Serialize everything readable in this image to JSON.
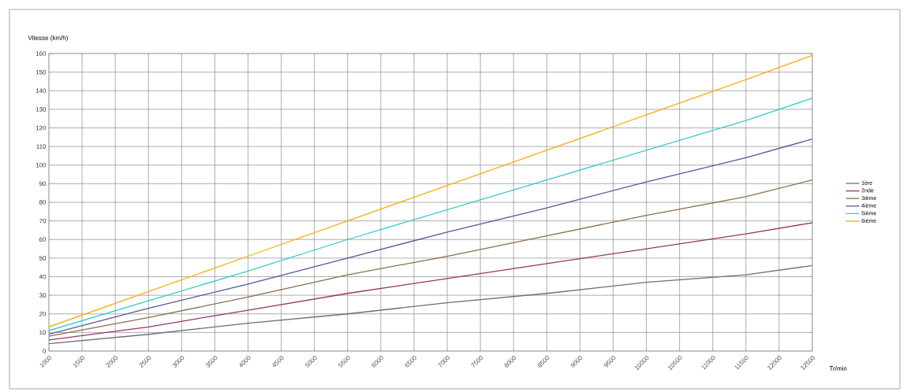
{
  "chart_data": {
    "type": "line",
    "xlabel": "Tr/min",
    "ylabel": "Vitesse (km/h)",
    "x": [
      1000,
      2500,
      4000,
      5500,
      7000,
      8500,
      10000,
      11500,
      12500
    ],
    "series": [
      {
        "name": "1ère",
        "color": "#6b6b85",
        "values": [
          4,
          9,
          15,
          20,
          26,
          31,
          37,
          41,
          46
        ]
      },
      {
        "name": "2nde",
        "color": "#993366",
        "values": [
          6,
          13,
          22,
          31,
          39,
          47,
          55,
          63,
          69
        ]
      },
      {
        "name": "3ième",
        "color": "#8c6e4e",
        "values": [
          8,
          18,
          29,
          41,
          51,
          62,
          73,
          83,
          92
        ]
      },
      {
        "name": "4ième",
        "color": "#55579a",
        "values": [
          9,
          23,
          36,
          50,
          64,
          77,
          91,
          104,
          114
        ]
      },
      {
        "name": "5ième",
        "color": "#33cccc",
        "values": [
          11,
          27,
          43,
          60,
          76,
          92,
          108,
          124,
          136
        ]
      },
      {
        "name": "6ième",
        "color": "#ffaa11",
        "values": [
          13,
          32,
          51,
          70,
          89,
          108,
          127,
          146,
          159
        ]
      }
    ],
    "xlim": [
      1000,
      12500
    ],
    "xticks": [
      1000,
      1500,
      2000,
      2500,
      3000,
      3500,
      4000,
      4500,
      5000,
      5500,
      6000,
      6500,
      7000,
      7500,
      8000,
      8500,
      9000,
      9500,
      10000,
      10500,
      11000,
      11500,
      12000,
      12500
    ],
    "ylim": [
      0,
      160
    ],
    "yticks": [
      0,
      10,
      20,
      30,
      40,
      50,
      60,
      70,
      80,
      90,
      100,
      110,
      120,
      130,
      140,
      150,
      160
    ],
    "grid": true,
    "legend": "right",
    "marker": "none",
    "line_style": "solid"
  }
}
